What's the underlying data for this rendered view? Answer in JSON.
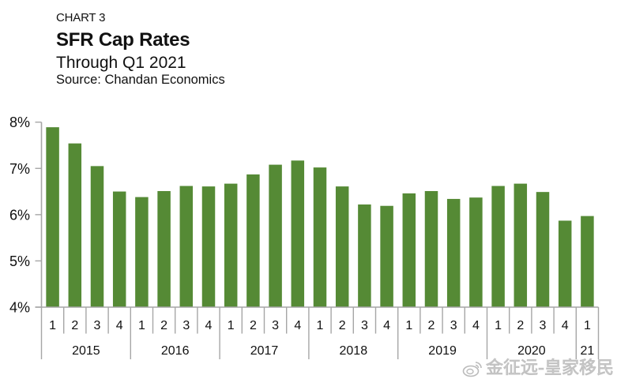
{
  "header": {
    "label": "CHART 3",
    "title": "SFR Cap Rates",
    "subtitle": "Through Q1 2021",
    "source": "Source: Chandan Economics"
  },
  "watermark": {
    "text": "金征远-皇家移民",
    "icon": "weibo-logo-icon"
  },
  "colors": {
    "bar": "#558a35",
    "axis": "#a6a6a6",
    "text": "#111111"
  },
  "chart_data": {
    "type": "bar",
    "title": "SFR Cap Rates",
    "subtitle": "Through Q1 2021",
    "xlabel": "",
    "ylabel": "",
    "ylim": [
      4,
      8
    ],
    "yticks": [
      4,
      5,
      6,
      7,
      8
    ],
    "ytick_labels": [
      "4%",
      "5%",
      "6%",
      "7%",
      "8%"
    ],
    "grid": false,
    "legend": "none",
    "categories": [
      "2015 Q1",
      "2015 Q2",
      "2015 Q3",
      "2015 Q4",
      "2016 Q1",
      "2016 Q2",
      "2016 Q3",
      "2016 Q4",
      "2017 Q1",
      "2017 Q2",
      "2017 Q3",
      "2017 Q4",
      "2018 Q1",
      "2018 Q2",
      "2018 Q3",
      "2018 Q4",
      "2019 Q1",
      "2019 Q2",
      "2019 Q3",
      "2019 Q4",
      "2020 Q1",
      "2020 Q2",
      "2020 Q3",
      "2020 Q4",
      "2021 Q1"
    ],
    "quarter_labels": [
      "1",
      "2",
      "3",
      "4",
      "1",
      "2",
      "3",
      "4",
      "1",
      "2",
      "3",
      "4",
      "1",
      "2",
      "3",
      "4",
      "1",
      "2",
      "3",
      "4",
      "1",
      "2",
      "3",
      "4",
      "1"
    ],
    "year_groups": [
      {
        "label": "2015",
        "count": 4
      },
      {
        "label": "2016",
        "count": 4
      },
      {
        "label": "2017",
        "count": 4
      },
      {
        "label": "2018",
        "count": 4
      },
      {
        "label": "2019",
        "count": 4
      },
      {
        "label": "2020",
        "count": 4
      },
      {
        "label": "21",
        "count": 1
      }
    ],
    "series": [
      {
        "name": "SFR Cap Rate (%)",
        "values": [
          7.89,
          7.54,
          7.05,
          6.5,
          6.38,
          6.51,
          6.62,
          6.61,
          6.67,
          6.87,
          7.08,
          7.17,
          7.02,
          6.61,
          6.22,
          6.19,
          6.46,
          6.51,
          6.34,
          6.37,
          6.62,
          6.67,
          6.49,
          5.87,
          5.97
        ]
      }
    ]
  }
}
